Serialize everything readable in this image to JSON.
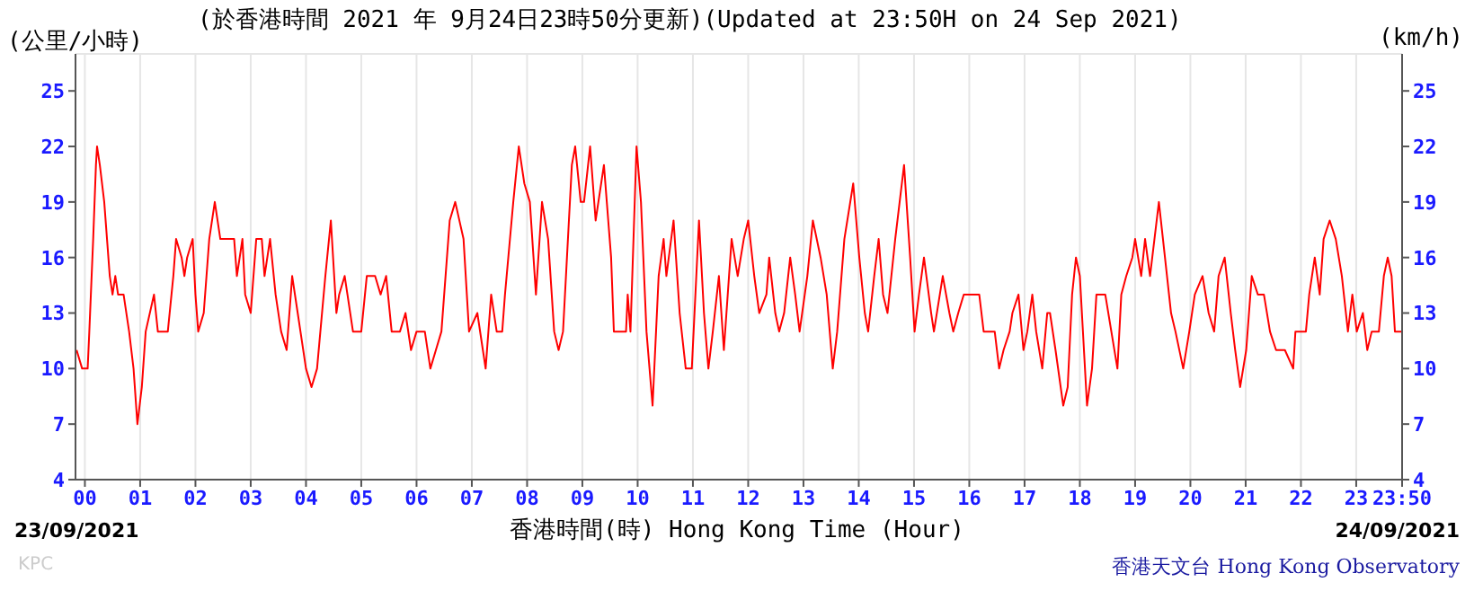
{
  "chart_data": {
    "type": "line",
    "title": "(於香港時間 2021 年 9月24日23時50分更新)(Updated at 23:50H on 24 Sep 2021)",
    "ylabel": "(公里/小時)",
    "y2label": "(km/h)",
    "xlabel": "香港時間(時) Hong Kong Time (Hour)",
    "annotations": [
      "23/09/2021",
      "24/09/2021",
      "KPC",
      "香港天文台 Hong Kong Observatory"
    ],
    "x": [
      -0.15,
      -0.05,
      0.05,
      0.08,
      0.15,
      0.2,
      0.22,
      0.27,
      0.35,
      0.45,
      0.5,
      0.55,
      0.6,
      0.7,
      0.8,
      0.88,
      0.95,
      1.03,
      1.1,
      1.25,
      1.32,
      1.5,
      1.6,
      1.65,
      1.75,
      1.8,
      1.85,
      1.95,
      2.0,
      2.05,
      2.15,
      2.25,
      2.35,
      2.45,
      2.7,
      2.75,
      2.85,
      2.9,
      3.0,
      3.1,
      3.2,
      3.25,
      3.35,
      3.45,
      3.55,
      3.65,
      3.75,
      3.85,
      3.9,
      4.0,
      4.1,
      4.2,
      4.35,
      4.45,
      4.55,
      4.6,
      4.7,
      4.75,
      4.85,
      5.0,
      5.1,
      5.25,
      5.35,
      5.45,
      5.55,
      5.7,
      5.8,
      5.9,
      6.0,
      6.15,
      6.25,
      6.35,
      6.45,
      6.6,
      6.7,
      6.85,
      6.95,
      7.1,
      7.2,
      7.25,
      7.35,
      7.45,
      7.55,
      7.6,
      7.75,
      7.85,
      7.95,
      8.05,
      8.16,
      8.27,
      8.38,
      8.49,
      8.57,
      8.65,
      8.81,
      8.87,
      8.97,
      9.03,
      9.14,
      9.24,
      9.39,
      9.52,
      9.57,
      9.79,
      9.82,
      9.87,
      9.98,
      10.06,
      10.16,
      10.27,
      10.38,
      10.47,
      10.52,
      10.65,
      10.76,
      10.87,
      10.98,
      11.11,
      11.2,
      11.28,
      11.36,
      11.47,
      11.56,
      11.63,
      11.7,
      11.81,
      11.92,
      12.0,
      12.11,
      12.2,
      12.33,
      12.38,
      12.49,
      12.56,
      12.65,
      12.76,
      12.85,
      12.93,
      13.07,
      13.17,
      13.31,
      13.42,
      13.53,
      13.61,
      13.74,
      13.9,
      14.01,
      14.11,
      14.17,
      14.28,
      14.36,
      14.44,
      14.52,
      14.66,
      14.82,
      14.93,
      15.01,
      15.09,
      15.18,
      15.31,
      15.36,
      15.52,
      15.64,
      15.71,
      15.8,
      15.9,
      16.18,
      16.26,
      16.46,
      16.54,
      16.62,
      16.73,
      16.78,
      16.89,
      16.98,
      17.05,
      17.14,
      17.21,
      17.32,
      17.41,
      17.46,
      17.56,
      17.7,
      17.78,
      17.86,
      17.93,
      18.0,
      18.13,
      18.22,
      18.3,
      18.46,
      18.57,
      18.68,
      18.75,
      18.84,
      18.95,
      19.0,
      19.11,
      19.18,
      19.27,
      19.43,
      19.54,
      19.65,
      19.73,
      19.87,
      19.98,
      20.08,
      20.22,
      20.33,
      20.43,
      20.51,
      20.62,
      20.73,
      20.81,
      20.9,
      21.01,
      21.11,
      21.22,
      21.33,
      21.44,
      21.55,
      21.71,
      21.86,
      21.9,
      22.09,
      22.15,
      22.25,
      22.34,
      22.41,
      22.52,
      22.63,
      22.74,
      22.85,
      22.93,
      23.01,
      23.12,
      23.2,
      23.28,
      23.41,
      23.5,
      23.57,
      23.64,
      23.7,
      23.83
    ],
    "series": [
      {
        "color": "#ff0000",
        "values": [
          11,
          10,
          10,
          12,
          17,
          21,
          22,
          21,
          19,
          15,
          14,
          15,
          14,
          14,
          12,
          10,
          7,
          9,
          12,
          14,
          12,
          12,
          15,
          17,
          16,
          15,
          16,
          17,
          14,
          12,
          13,
          17,
          19,
          17,
          17,
          15,
          17,
          14,
          13,
          17,
          17,
          15,
          17,
          14,
          12,
          11,
          15,
          13,
          12,
          10,
          9,
          10,
          15,
          18,
          13,
          14,
          15,
          14,
          12,
          12,
          15,
          15,
          14,
          15,
          12,
          12,
          13,
          11,
          12,
          12,
          10,
          11,
          12,
          18,
          19,
          17,
          12,
          13,
          11,
          10,
          14,
          12,
          12,
          14,
          19,
          22,
          20,
          19,
          14,
          19,
          17,
          12,
          11,
          12,
          21,
          22,
          19,
          19,
          22,
          18,
          21,
          16,
          12,
          12,
          14,
          12,
          22,
          19,
          12,
          8,
          15,
          17,
          15,
          18,
          13,
          10,
          10,
          18,
          13,
          10,
          12,
          15,
          11,
          14,
          17,
          15,
          17,
          18,
          15,
          13,
          14,
          16,
          13,
          12,
          13,
          16,
          14,
          12,
          15,
          18,
          16,
          14,
          10,
          12,
          17,
          20,
          16,
          13,
          12,
          15,
          17,
          14,
          13,
          17,
          21,
          16,
          12,
          14,
          16,
          13,
          12,
          15,
          13,
          12,
          13,
          14,
          14,
          12,
          12,
          10,
          11,
          12,
          13,
          14,
          11,
          12,
          14,
          12,
          10,
          13,
          13,
          11,
          8,
          9,
          14,
          16,
          15,
          8,
          10,
          14,
          14,
          12,
          10,
          14,
          15,
          16,
          17,
          15,
          17,
          15,
          19,
          16,
          13,
          12,
          10,
          12,
          14,
          15,
          13,
          12,
          15,
          16,
          13,
          11,
          9,
          11,
          15,
          14,
          14,
          12,
          11,
          11,
          10,
          12,
          12,
          14,
          16,
          14,
          17,
          18,
          17,
          15,
          12,
          14,
          12,
          13,
          11,
          12,
          12,
          15,
          16,
          15,
          12,
          12
        ]
      }
    ],
    "xlim": [
      -0.17,
      23.83
    ],
    "xticks": [
      {
        "value": 0,
        "label": "00"
      },
      {
        "value": 1,
        "label": "01"
      },
      {
        "value": 2,
        "label": "02"
      },
      {
        "value": 3,
        "label": "03"
      },
      {
        "value": 4,
        "label": "04"
      },
      {
        "value": 5,
        "label": "05"
      },
      {
        "value": 6,
        "label": "06"
      },
      {
        "value": 7,
        "label": "07"
      },
      {
        "value": 8,
        "label": "08"
      },
      {
        "value": 9,
        "label": "09"
      },
      {
        "value": 10,
        "label": "10"
      },
      {
        "value": 11,
        "label": "11"
      },
      {
        "value": 12,
        "label": "12"
      },
      {
        "value": 13,
        "label": "13"
      },
      {
        "value": 14,
        "label": "14"
      },
      {
        "value": 15,
        "label": "15"
      },
      {
        "value": 16,
        "label": "16"
      },
      {
        "value": 17,
        "label": "17"
      },
      {
        "value": 18,
        "label": "18"
      },
      {
        "value": 19,
        "label": "19"
      },
      {
        "value": 20,
        "label": "20"
      },
      {
        "value": 21,
        "label": "21"
      },
      {
        "value": 22,
        "label": "22"
      },
      {
        "value": 23,
        "label": "23"
      },
      {
        "value": 23.83,
        "label": "23:50"
      }
    ],
    "ylim": [
      4,
      27
    ],
    "yticks": [
      4,
      7,
      10,
      13,
      16,
      19,
      22,
      25
    ],
    "y2lim": [
      4,
      27
    ],
    "y2ticks": [
      4,
      7,
      10,
      13,
      16,
      19,
      22,
      25
    ],
    "grid": true,
    "marker": "none",
    "line_style": "solid"
  }
}
